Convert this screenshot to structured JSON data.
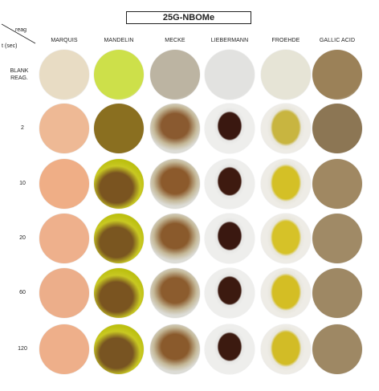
{
  "title": "25G-NBOMe",
  "axis": {
    "reagent_label": "reag",
    "time_label": "t (sec)"
  },
  "reagents": [
    "MARQUIS",
    "MANDELIN",
    "MECKE",
    "LIEBERMANN",
    "FROEHDE",
    "GALLIC ACID"
  ],
  "rows": [
    {
      "label": "BLANK REAG."
    },
    {
      "label": "2"
    },
    {
      "label": "10"
    },
    {
      "label": "20"
    },
    {
      "label": "60"
    },
    {
      "label": "120"
    }
  ],
  "dish_colors": {
    "MARQUIS": [
      "#e8dcc4",
      "#eeb995",
      "#efae86",
      "#eeb08c",
      "#ecae8a",
      "#eeaf8a"
    ],
    "MANDELIN": [
      "#cde04a",
      "#8a6f20",
      "#7a5420",
      "#7a5620",
      "#7a5420",
      "#785422"
    ],
    "MECKE": [
      "#bcb4a2",
      "#8a5a30",
      "#8c5a2c",
      "#8a5a2c",
      "#8c5c2e",
      "#8a5a2c"
    ],
    "LIEBERMANN": [
      "#e2e2e0",
      "#3a1810",
      "#3e1a10",
      "#3a1810",
      "#3c1a10",
      "#3c1a10"
    ],
    "FROEHDE": [
      "#e6e4d6",
      "#c8b540",
      "#d4c026",
      "#d6c228",
      "#d4be24",
      "#d2bc26"
    ],
    "GALLIC ACID": [
      "#9b8158",
      "#8c7654",
      "#a08862",
      "#a08a66",
      "#9e8864",
      "#9e8864"
    ]
  }
}
